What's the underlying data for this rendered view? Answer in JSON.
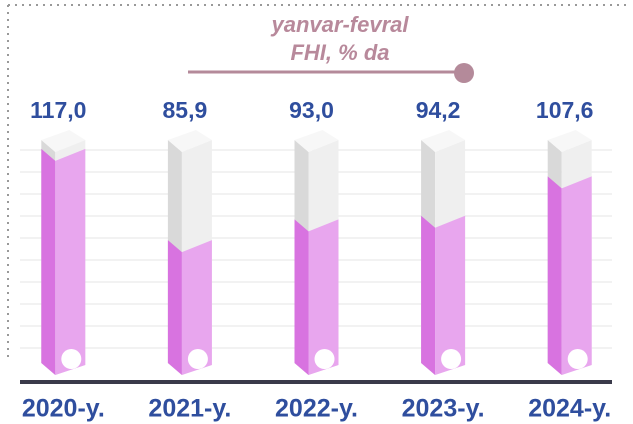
{
  "chart_data": {
    "type": "bar",
    "title": [
      "yanvar-fevral",
      "FHI, % da"
    ],
    "categories": [
      "2020-y.",
      "2021-y.",
      "2022-y.",
      "2023-y.",
      "2024-y."
    ],
    "values": [
      117.0,
      85.9,
      93.0,
      94.2,
      107.6
    ],
    "value_labels": [
      "117,0",
      "85,9",
      "93,0",
      "94,2",
      "107,6"
    ],
    "color": "#e8a6ee",
    "ylim": [
      40,
      120
    ]
  }
}
